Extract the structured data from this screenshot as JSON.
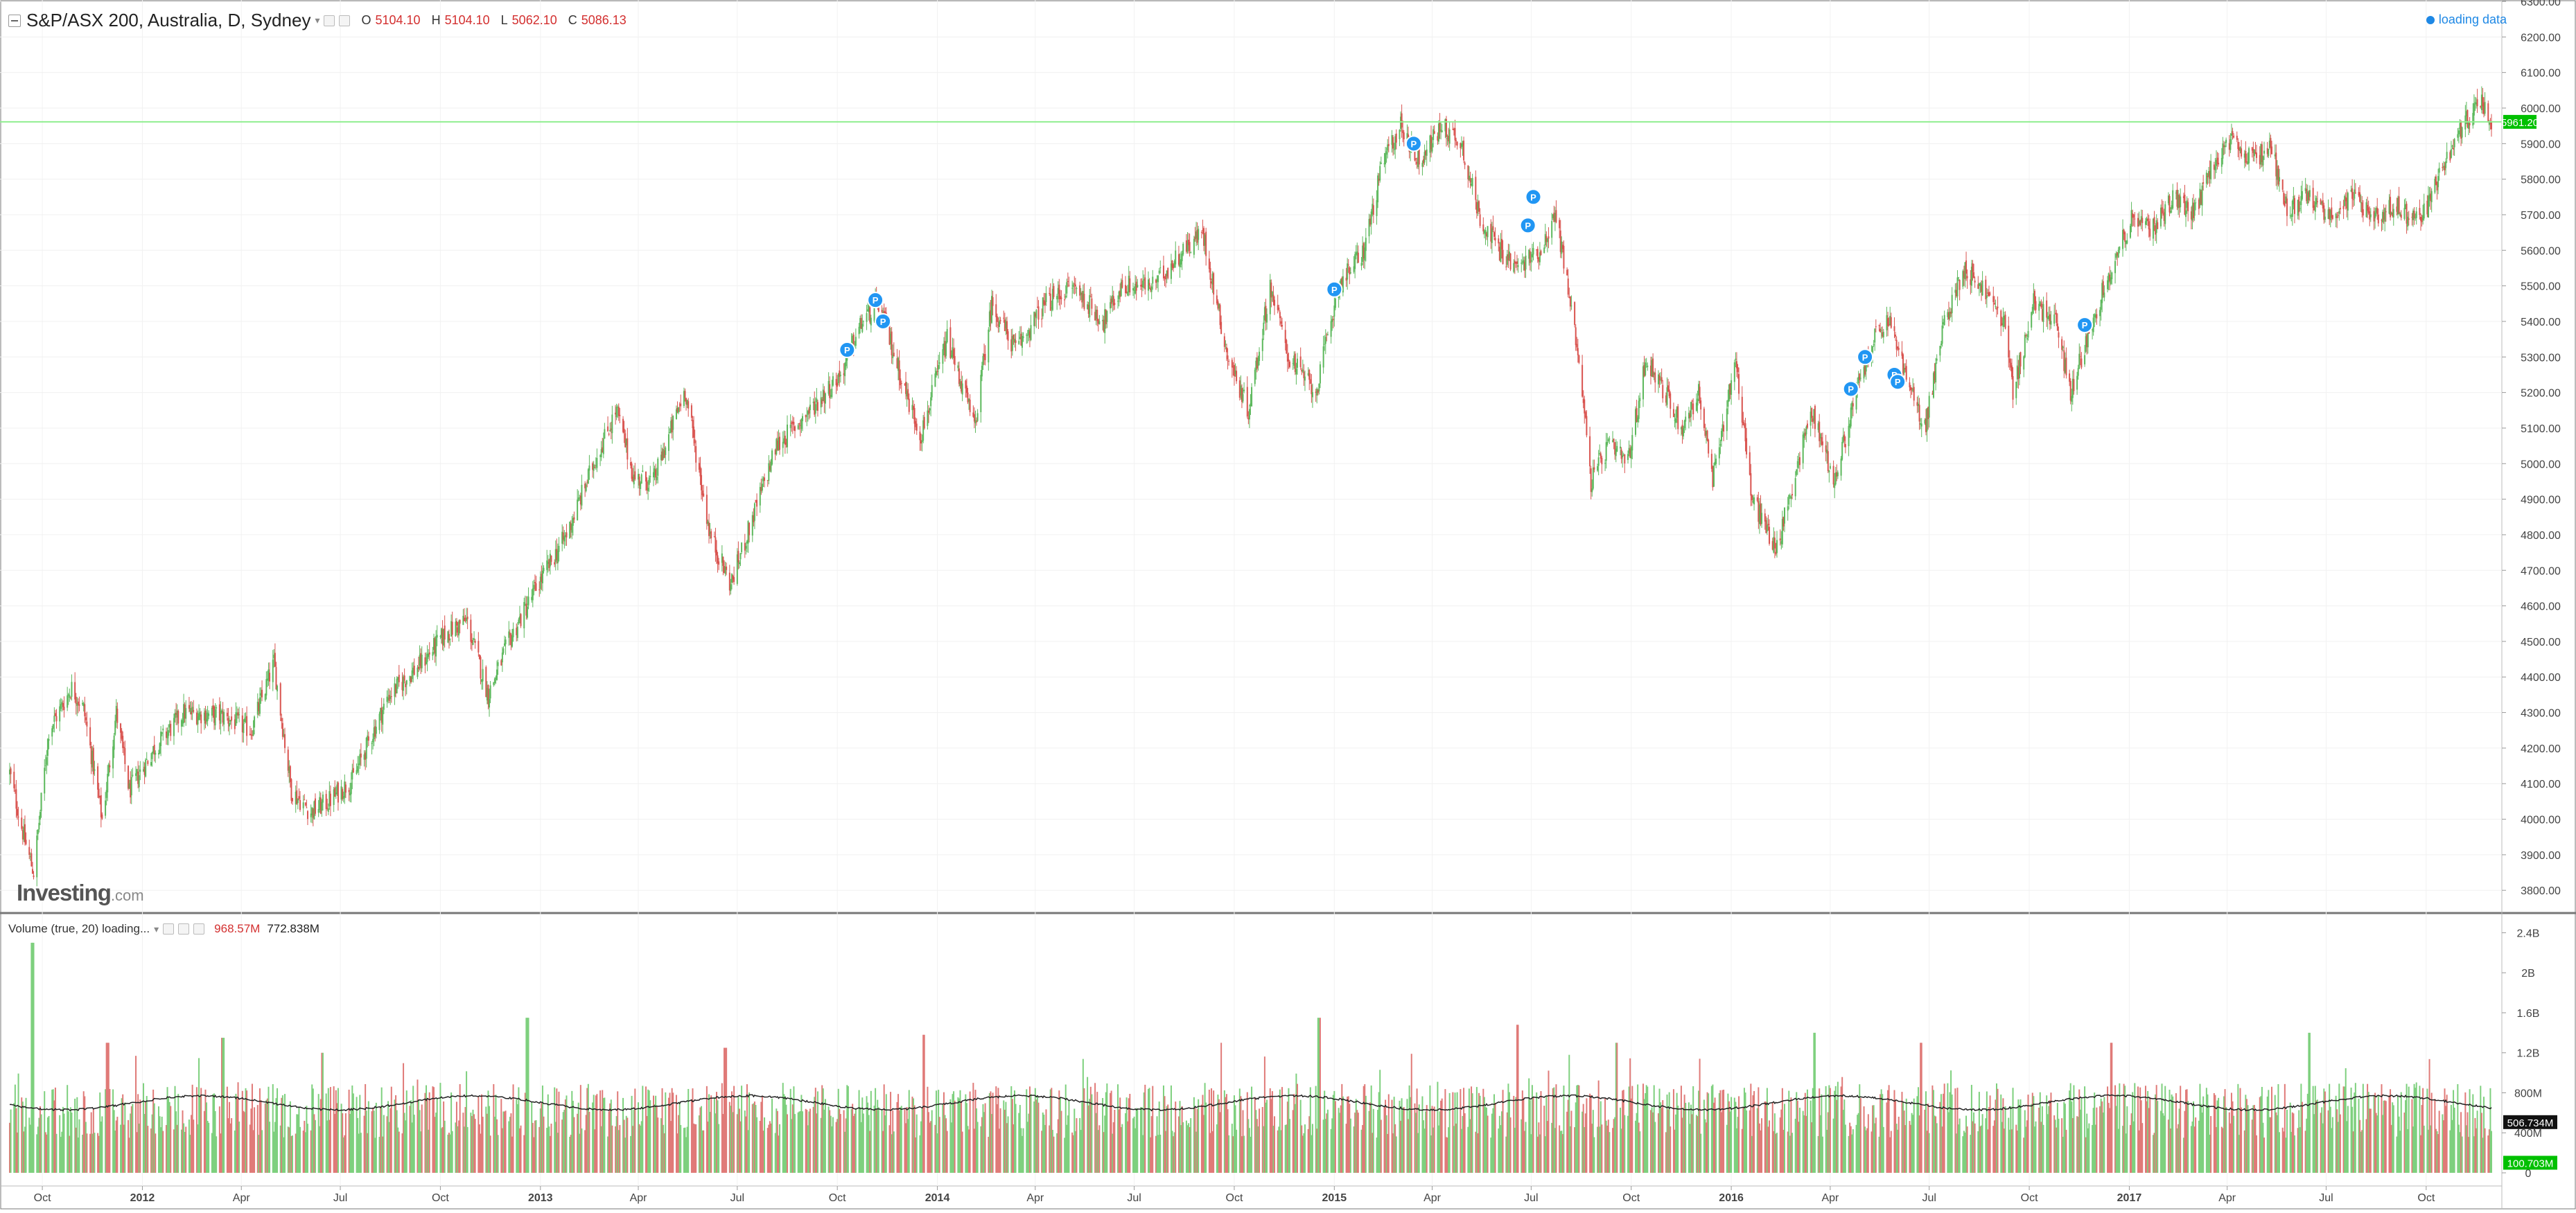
{
  "header": {
    "title": "S&P/ASX 200, Australia, D, Sydney",
    "ohlc": [
      {
        "label": "O",
        "value": "5104.10"
      },
      {
        "label": "H",
        "value": "5104.10"
      },
      {
        "label": "L",
        "value": "5062.10"
      },
      {
        "label": "C",
        "value": "5086.13"
      }
    ],
    "status": "loading data"
  },
  "volume_header": {
    "title": "Volume (true, 20) loading...",
    "value_1": "968.57M",
    "value_2": "772.838M"
  },
  "brand": {
    "main": "Investing",
    "suffix": ".com"
  },
  "chart_data": [
    {
      "type": "candlestick",
      "title": "S&P/ASX 200, Australia, D, Sydney",
      "y_range": [
        3740,
        6300
      ],
      "y_ticks": [
        "6300.00",
        "6200.00",
        "6100.00",
        "6000.00",
        "5900.00",
        "5800.00",
        "5700.00",
        "5600.00",
        "5500.00",
        "5400.00",
        "5300.00",
        "5200.00",
        "5100.00",
        "5000.00",
        "4900.00",
        "4800.00",
        "4700.00",
        "4600.00",
        "4500.00",
        "4400.00",
        "4300.00",
        "4200.00",
        "4100.00",
        "4000.00",
        "3900.00",
        "3800.00"
      ],
      "x_range": [
        "2011-09-01",
        "2017-11-30"
      ],
      "x_ticks": [
        {
          "label": "Oct",
          "date": "2011-10-01",
          "bold": false
        },
        {
          "label": "2012",
          "date": "2012-01-01",
          "bold": true
        },
        {
          "label": "Apr",
          "date": "2012-04-01",
          "bold": false
        },
        {
          "label": "Jul",
          "date": "2012-07-01",
          "bold": false
        },
        {
          "label": "Oct",
          "date": "2012-10-01",
          "bold": false
        },
        {
          "label": "2013",
          "date": "2013-01-01",
          "bold": true
        },
        {
          "label": "Apr",
          "date": "2013-04-01",
          "bold": false
        },
        {
          "label": "Jul",
          "date": "2013-07-01",
          "bold": false
        },
        {
          "label": "Oct",
          "date": "2013-10-01",
          "bold": false
        },
        {
          "label": "2014",
          "date": "2014-01-01",
          "bold": true
        },
        {
          "label": "Apr",
          "date": "2014-04-01",
          "bold": false
        },
        {
          "label": "Jul",
          "date": "2014-07-01",
          "bold": false
        },
        {
          "label": "Oct",
          "date": "2014-10-01",
          "bold": false
        },
        {
          "label": "2015",
          "date": "2015-01-01",
          "bold": true
        },
        {
          "label": "Apr",
          "date": "2015-04-01",
          "bold": false
        },
        {
          "label": "Jul",
          "date": "2015-07-01",
          "bold": false
        },
        {
          "label": "Oct",
          "date": "2015-10-01",
          "bold": false
        },
        {
          "label": "2016",
          "date": "2016-01-01",
          "bold": true
        },
        {
          "label": "Apr",
          "date": "2016-04-01",
          "bold": false
        },
        {
          "label": "Jul",
          "date": "2016-07-01",
          "bold": false
        },
        {
          "label": "Oct",
          "date": "2016-10-01",
          "bold": false
        },
        {
          "label": "2017",
          "date": "2017-01-01",
          "bold": true
        },
        {
          "label": "Apr",
          "date": "2017-04-01",
          "bold": false
        },
        {
          "label": "Jul",
          "date": "2017-07-01",
          "bold": false
        },
        {
          "label": "Oct",
          "date": "2017-10-01",
          "bold": false
        }
      ],
      "close_path": [
        {
          "date": "2011-09-01",
          "close": 4130
        },
        {
          "date": "2011-09-14",
          "close": 3950
        },
        {
          "date": "2011-09-23",
          "close": 3850
        },
        {
          "date": "2011-10-07",
          "close": 4250
        },
        {
          "date": "2011-10-28",
          "close": 4370
        },
        {
          "date": "2011-11-08",
          "close": 4310
        },
        {
          "date": "2011-11-25",
          "close": 4000
        },
        {
          "date": "2011-12-08",
          "close": 4300
        },
        {
          "date": "2011-12-20",
          "close": 4080
        },
        {
          "date": "2012-01-12",
          "close": 4200
        },
        {
          "date": "2012-02-08",
          "close": 4300
        },
        {
          "date": "2012-03-15",
          "close": 4290
        },
        {
          "date": "2012-04-10",
          "close": 4250
        },
        {
          "date": "2012-05-01",
          "close": 4440
        },
        {
          "date": "2012-05-17",
          "close": 4080
        },
        {
          "date": "2012-06-04",
          "close": 4020
        },
        {
          "date": "2012-06-20",
          "close": 4050
        },
        {
          "date": "2012-07-12",
          "close": 4110
        },
        {
          "date": "2012-08-15",
          "close": 4350
        },
        {
          "date": "2012-09-14",
          "close": 4440
        },
        {
          "date": "2012-10-05",
          "close": 4520
        },
        {
          "date": "2012-10-25",
          "close": 4560
        },
        {
          "date": "2012-11-14",
          "close": 4350
        },
        {
          "date": "2012-12-03",
          "close": 4500
        },
        {
          "date": "2012-12-28",
          "close": 4650
        },
        {
          "date": "2013-01-25",
          "close": 4800
        },
        {
          "date": "2013-02-20",
          "close": 5010
        },
        {
          "date": "2013-03-12",
          "close": 5150
        },
        {
          "date": "2013-03-28",
          "close": 4960
        },
        {
          "date": "2013-04-15",
          "close": 4950
        },
        {
          "date": "2013-05-14",
          "close": 5210
        },
        {
          "date": "2013-06-06",
          "close": 4800
        },
        {
          "date": "2013-06-25",
          "close": 4660
        },
        {
          "date": "2013-07-10",
          "close": 4800
        },
        {
          "date": "2013-08-06",
          "close": 5050
        },
        {
          "date": "2013-09-06",
          "close": 5150
        },
        {
          "date": "2013-10-04",
          "close": 5250
        },
        {
          "date": "2013-10-24",
          "close": 5400
        },
        {
          "date": "2013-11-08",
          "close": 5450
        },
        {
          "date": "2013-12-06",
          "close": 5170
        },
        {
          "date": "2013-12-17",
          "close": 5080
        },
        {
          "date": "2014-01-10",
          "close": 5350
        },
        {
          "date": "2014-01-28",
          "close": 5180
        },
        {
          "date": "2014-02-04",
          "close": 5100
        },
        {
          "date": "2014-02-20",
          "close": 5450
        },
        {
          "date": "2014-03-14",
          "close": 5320
        },
        {
          "date": "2014-04-10",
          "close": 5450
        },
        {
          "date": "2014-05-06",
          "close": 5500
        },
        {
          "date": "2014-06-03",
          "close": 5400
        },
        {
          "date": "2014-06-20",
          "close": 5500
        },
        {
          "date": "2014-07-18",
          "close": 5500
        },
        {
          "date": "2014-08-15",
          "close": 5600
        },
        {
          "date": "2014-09-02",
          "close": 5650
        },
        {
          "date": "2014-09-25",
          "close": 5300
        },
        {
          "date": "2014-10-14",
          "close": 5150
        },
        {
          "date": "2014-11-03",
          "close": 5500
        },
        {
          "date": "2014-11-20",
          "close": 5300
        },
        {
          "date": "2014-12-15",
          "close": 5200
        },
        {
          "date": "2015-01-05",
          "close": 5500
        },
        {
          "date": "2015-01-28",
          "close": 5600
        },
        {
          "date": "2015-02-15",
          "close": 5850
        },
        {
          "date": "2015-03-03",
          "close": 5950
        },
        {
          "date": "2015-03-20",
          "close": 5850
        },
        {
          "date": "2015-04-10",
          "close": 5950
        },
        {
          "date": "2015-04-28",
          "close": 5900
        },
        {
          "date": "2015-05-14",
          "close": 5700
        },
        {
          "date": "2015-06-02",
          "close": 5600
        },
        {
          "date": "2015-06-18",
          "close": 5550
        },
        {
          "date": "2015-07-09",
          "close": 5600
        },
        {
          "date": "2015-07-24",
          "close": 5700
        },
        {
          "date": "2015-08-14",
          "close": 5300
        },
        {
          "date": "2015-08-25",
          "close": 4950
        },
        {
          "date": "2015-09-10",
          "close": 5050
        },
        {
          "date": "2015-09-28",
          "close": 5000
        },
        {
          "date": "2015-10-15",
          "close": 5300
        },
        {
          "date": "2015-11-01",
          "close": 5200
        },
        {
          "date": "2015-11-17",
          "close": 5100
        },
        {
          "date": "2015-12-02",
          "close": 5200
        },
        {
          "date": "2015-12-15",
          "close": 4950
        },
        {
          "date": "2016-01-05",
          "close": 5300
        },
        {
          "date": "2016-01-20",
          "close": 4900
        },
        {
          "date": "2016-02-12",
          "close": 4760
        },
        {
          "date": "2016-03-02",
          "close": 5000
        },
        {
          "date": "2016-03-15",
          "close": 5150
        },
        {
          "date": "2016-04-05",
          "close": 4950
        },
        {
          "date": "2016-04-25",
          "close": 5200
        },
        {
          "date": "2016-05-11",
          "close": 5350
        },
        {
          "date": "2016-05-26",
          "close": 5400
        },
        {
          "date": "2016-06-14",
          "close": 5200
        },
        {
          "date": "2016-06-27",
          "close": 5100
        },
        {
          "date": "2016-07-15",
          "close": 5400
        },
        {
          "date": "2016-08-02",
          "close": 5550
        },
        {
          "date": "2016-08-18",
          "close": 5500
        },
        {
          "date": "2016-09-08",
          "close": 5400
        },
        {
          "date": "2016-09-16",
          "close": 5200
        },
        {
          "date": "2016-10-05",
          "close": 5450
        },
        {
          "date": "2016-10-25",
          "close": 5400
        },
        {
          "date": "2016-11-08",
          "close": 5200
        },
        {
          "date": "2016-11-28",
          "close": 5400
        },
        {
          "date": "2016-12-15",
          "close": 5550
        },
        {
          "date": "2017-01-05",
          "close": 5700
        },
        {
          "date": "2017-01-20",
          "close": 5650
        },
        {
          "date": "2017-02-10",
          "close": 5750
        },
        {
          "date": "2017-03-01",
          "close": 5700
        },
        {
          "date": "2017-03-20",
          "close": 5850
        },
        {
          "date": "2017-04-05",
          "close": 5900
        },
        {
          "date": "2017-04-25",
          "close": 5850
        },
        {
          "date": "2017-05-10",
          "close": 5900
        },
        {
          "date": "2017-05-26",
          "close": 5720
        },
        {
          "date": "2017-06-15",
          "close": 5750
        },
        {
          "date": "2017-07-05",
          "close": 5700
        },
        {
          "date": "2017-07-25",
          "close": 5750
        },
        {
          "date": "2017-08-15",
          "close": 5700
        },
        {
          "date": "2017-09-05",
          "close": 5720
        },
        {
          "date": "2017-09-25",
          "close": 5680
        },
        {
          "date": "2017-10-12",
          "close": 5800
        },
        {
          "date": "2017-10-27",
          "close": 5900
        },
        {
          "date": "2017-11-10",
          "close": 5980
        },
        {
          "date": "2017-11-20",
          "close": 6030
        },
        {
          "date": "2017-11-30",
          "close": 5960
        }
      ],
      "current_price": {
        "value": 5961.2,
        "label": "5961.20"
      },
      "markers": [
        {
          "date": "2013-10-10",
          "price": 5320,
          "label": "P"
        },
        {
          "date": "2013-11-05",
          "price": 5460,
          "label": "P"
        },
        {
          "date": "2013-11-12",
          "price": 5400,
          "label": "P"
        },
        {
          "date": "2015-01-01",
          "price": 5490,
          "label": "P"
        },
        {
          "date": "2015-03-15",
          "price": 5900,
          "label": "P"
        },
        {
          "date": "2015-06-28",
          "price": 5670,
          "label": "P"
        },
        {
          "date": "2015-07-03",
          "price": 5750,
          "label": "P"
        },
        {
          "date": "2016-04-20",
          "price": 5210,
          "label": "P"
        },
        {
          "date": "2016-05-03",
          "price": 5300,
          "label": "P"
        },
        {
          "date": "2016-05-30",
          "price": 5250,
          "label": "P"
        },
        {
          "date": "2016-06-02",
          "price": 5230,
          "label": "P"
        },
        {
          "date": "2016-11-21",
          "price": 5390,
          "label": "P"
        }
      ],
      "colors": {
        "up": "#5cb85c",
        "down": "#d9534f",
        "current_line": "#90ee90",
        "current_badge": "#00c000",
        "marker": "#2196f3"
      }
    },
    {
      "type": "bar",
      "title": "Volume (true, 20) loading...",
      "y_range": [
        0,
        2500
      ],
      "y_ticks": [
        {
          "label": "2.4B",
          "value": 2400
        },
        {
          "label": "2B",
          "value": 2000
        },
        {
          "label": "1.6B",
          "value": 1600
        },
        {
          "label": "1.2B",
          "value": 1200
        },
        {
          "label": "800M",
          "value": 800
        },
        {
          "label": "400M",
          "value": 400
        },
        {
          "label": "0",
          "value": 0
        }
      ],
      "volume_ma_level": 700,
      "spikes": [
        {
          "date": "2011-09-22",
          "value": 2300
        },
        {
          "date": "2011-11-30",
          "value": 1300
        },
        {
          "date": "2012-03-15",
          "value": 1350
        },
        {
          "date": "2012-06-15",
          "value": 1200
        },
        {
          "date": "2012-12-20",
          "value": 1550
        },
        {
          "date": "2013-06-20",
          "value": 1250
        },
        {
          "date": "2013-12-20",
          "value": 1380
        },
        {
          "date": "2014-09-20",
          "value": 1300
        },
        {
          "date": "2014-12-18",
          "value": 1550
        },
        {
          "date": "2015-06-19",
          "value": 1480
        },
        {
          "date": "2015-09-18",
          "value": 1300
        },
        {
          "date": "2016-03-18",
          "value": 1400
        },
        {
          "date": "2016-06-24",
          "value": 1300
        },
        {
          "date": "2016-12-16",
          "value": 1300
        },
        {
          "date": "2017-06-16",
          "value": 1400
        }
      ],
      "labels": {
        "badge_1": "506.734M",
        "badge_2": "100.703M"
      },
      "badge_values": {
        "badge_1": 506.734,
        "badge_2": 100.703
      },
      "colors": {
        "up": "#7ed07e",
        "down": "#e07a78",
        "ma_line": "#222222",
        "badge_1": "#111111",
        "badge_2": "#00c000"
      }
    }
  ]
}
